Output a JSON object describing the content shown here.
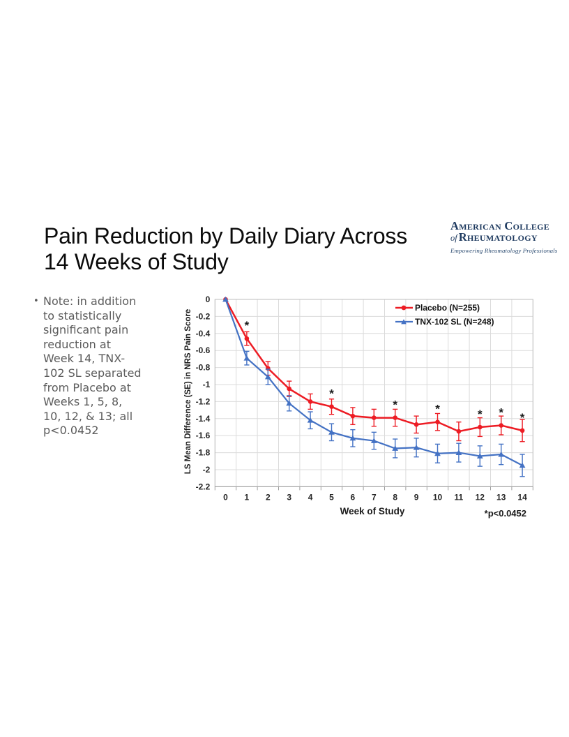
{
  "title": {
    "line1": "Pain Reduction by Daily Diary Across",
    "line2": "14 Weeks of Study"
  },
  "logo": {
    "name_line1": "American College",
    "of": "of",
    "name_line2": "Rheumatology",
    "tagline": "Empowering Rheumatology Professionals",
    "color": "#1E3A5F"
  },
  "note": {
    "bullet": "•",
    "text": "Note: in addition to statistically significant pain reduction at Week 14, TNX-102 SL separated from Placebo at Weeks 1, 5, 8, 10, 12, & 13; all p<0.0452",
    "lines": [
      "Note: in addition",
      "to statistically",
      "significant pain",
      "reduction at",
      "Week 14, TNX-",
      "102 SL separated",
      "from Placebo at",
      "Weeks 1, 5, 8,",
      "10, 12, & 13; all",
      "p<0.0452"
    ]
  },
  "chart_data": {
    "type": "line",
    "title": "",
    "xlabel": "Week of Study",
    "ylabel": "LS Mean Difference (SE) in NRS Pain Score",
    "footnote": "*p<0.0452",
    "x": [
      0,
      1,
      2,
      3,
      4,
      5,
      6,
      7,
      8,
      9,
      10,
      11,
      12,
      13,
      14
    ],
    "x_tick_labels": [
      "0",
      "1",
      "2",
      "3",
      "4",
      "5",
      "6",
      "7",
      "8",
      "9",
      "10",
      "11",
      "12",
      "13",
      "14"
    ],
    "y_ticks": [
      0,
      -0.2,
      -0.4,
      -0.6,
      -0.8,
      -1,
      -1.2,
      -1.4,
      -1.6,
      -1.8,
      -2,
      -2.2
    ],
    "y_tick_labels": [
      "0",
      "-0.2",
      "-0.4",
      "-0.6",
      "-0.8",
      "-1",
      "-1.2",
      "-1.4",
      "-1.6",
      "-1.8",
      "-2",
      "-2.2"
    ],
    "ylim": [
      -2.2,
      0
    ],
    "grid": true,
    "legend_position": "top-right-inside",
    "series": [
      {
        "name": "Placebo (N=255)",
        "color": "#ED1C24",
        "marker": "circle",
        "values": [
          0,
          -0.46,
          -0.81,
          -1.05,
          -1.2,
          -1.26,
          -1.37,
          -1.39,
          -1.39,
          -1.47,
          -1.44,
          -1.55,
          -1.5,
          -1.48,
          -1.54
        ],
        "se": [
          0,
          0.08,
          0.08,
          0.09,
          0.09,
          0.09,
          0.1,
          0.1,
          0.1,
          0.1,
          0.1,
          0.11,
          0.11,
          0.11,
          0.13
        ]
      },
      {
        "name": "TNX-102 SL (N=248)",
        "color": "#4472C4",
        "marker": "triangle",
        "values": [
          0,
          -0.69,
          -0.91,
          -1.22,
          -1.42,
          -1.56,
          -1.63,
          -1.66,
          -1.75,
          -1.74,
          -1.81,
          -1.8,
          -1.84,
          -1.82,
          -1.95
        ],
        "se": [
          0,
          0.08,
          0.09,
          0.09,
          0.1,
          0.1,
          0.1,
          0.1,
          0.11,
          0.11,
          0.11,
          0.11,
          0.12,
          0.12,
          0.13
        ]
      }
    ],
    "significance_weeks": [
      1,
      5,
      8,
      10,
      12,
      13,
      14
    ],
    "significance_symbol": "*",
    "colors": {
      "gridline": "#DBDBDB",
      "axis": "#BDBDBD",
      "axis_bottom": "#9E9E9E",
      "tick_text": "#262626",
      "star": "#1A1A1A"
    }
  }
}
